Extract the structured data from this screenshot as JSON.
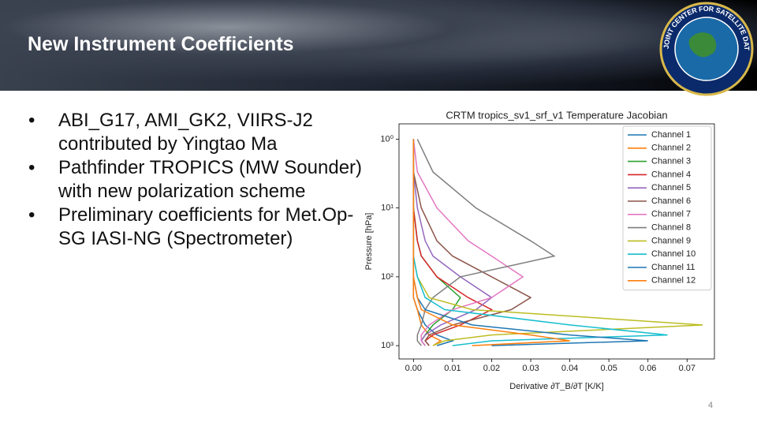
{
  "header": {
    "title": "New Instrument Coefficients",
    "logo_text": "JOINT CENTER FOR SATELLITE DATA ASSIMILATION"
  },
  "bullets": [
    "ABI_G17, AMI_GK2, VIIRS-J2 contributed by Yingtao Ma",
    "Pathfinder TROPICS (MW Sounder) with new polarization scheme",
    "Preliminary coefficients for Met.Op-SG IASI-NG (Spectrometer)"
  ],
  "page_number": "4",
  "chart_data": {
    "type": "line",
    "title": "CRTM tropics_sv1_srf_v1 Temperature Jacobian",
    "x_label": "Derivative ∂T_B/∂T [K/K]",
    "y_label": "Pressure [hPa]",
    "y_log": true,
    "y_inverted": true,
    "legend": "upper right",
    "pressure": [
      1,
      3,
      10,
      30,
      50,
      100,
      200,
      300,
      500,
      700,
      850,
      1000
    ],
    "xlim": [
      -0.0037,
      0.077
    ],
    "xticks": [
      {
        "value": 0,
        "label": "0.00"
      },
      0.01,
      0.02,
      0.03,
      0.04,
      0.05,
      0.06,
      0.07
    ],
    "ylim": [
      0.6,
      1560
    ],
    "yticks": [
      {
        "value": 1,
        "label": "10⁰"
      },
      {
        "value": 10,
        "label": "10¹"
      },
      {
        "value": 100,
        "label": "10²"
      },
      {
        "value": 1000,
        "label": "10³"
      }
    ],
    "series": [
      {
        "name": "Channel 1",
        "color": "#1f77b4",
        "values": [
          0,
          0,
          0,
          0,
          0,
          0,
          0,
          0.001,
          0.003,
          0.006,
          0.01,
          0.006
        ]
      },
      {
        "name": "Channel 2",
        "color": "#ff7f0e",
        "values": [
          0,
          0,
          0,
          0,
          0,
          0,
          0,
          0.001,
          0.002,
          0.004,
          0.007,
          0.005
        ]
      },
      {
        "name": "Channel 3",
        "color": "#2ca02c",
        "values": [
          0,
          0,
          0,
          0.001,
          0.002,
          0.006,
          0.012,
          0.01,
          0.005,
          0.003,
          0.002,
          0.003
        ]
      },
      {
        "name": "Channel 4",
        "color": "#d62728",
        "values": [
          0,
          0,
          0,
          0.001,
          0.002,
          0.006,
          0.014,
          0.02,
          0.012,
          0.005,
          0.003,
          0.004
        ]
      },
      {
        "name": "Channel 5",
        "color": "#9467bd",
        "values": [
          0,
          0,
          0.001,
          0.003,
          0.005,
          0.012,
          0.02,
          0.016,
          0.007,
          0.003,
          0.002,
          0.003
        ]
      },
      {
        "name": "Channel 6",
        "color": "#8c564b",
        "values": [
          0,
          0,
          0.002,
          0.006,
          0.01,
          0.02,
          0.03,
          0.025,
          0.01,
          0.004,
          0.003,
          0.004
        ]
      },
      {
        "name": "Channel 7",
        "color": "#e377c2",
        "values": [
          0,
          0.001,
          0.006,
          0.014,
          0.02,
          0.028,
          0.02,
          0.01,
          0.004,
          0.002,
          0.002,
          0.003
        ]
      },
      {
        "name": "Channel 8",
        "color": "#7f7f7f",
        "values": [
          0.001,
          0.005,
          0.016,
          0.03,
          0.036,
          0.012,
          0.005,
          0.003,
          0.002,
          0.001,
          0.001,
          0.002
        ]
      },
      {
        "name": "Channel 9",
        "color": "#bcbd22",
        "values": [
          0,
          0,
          0,
          0,
          0,
          0.001,
          0.004,
          0.015,
          0.074,
          0.02,
          0.008,
          0.005
        ]
      },
      {
        "name": "Channel 10",
        "color": "#17becf",
        "values": [
          0,
          0,
          0,
          0,
          0,
          0.001,
          0.003,
          0.008,
          0.04,
          0.065,
          0.02,
          0.01
        ]
      },
      {
        "name": "Channel 11",
        "color": "#1f77b4",
        "values": [
          0,
          0,
          0,
          0,
          0,
          0,
          0.001,
          0.003,
          0.015,
          0.04,
          0.06,
          0.02
        ]
      },
      {
        "name": "Channel 12",
        "color": "#ff7f0e",
        "values": [
          0,
          0,
          0,
          0,
          0,
          0,
          0.001,
          0.002,
          0.01,
          0.03,
          0.04,
          0.015
        ]
      }
    ]
  }
}
